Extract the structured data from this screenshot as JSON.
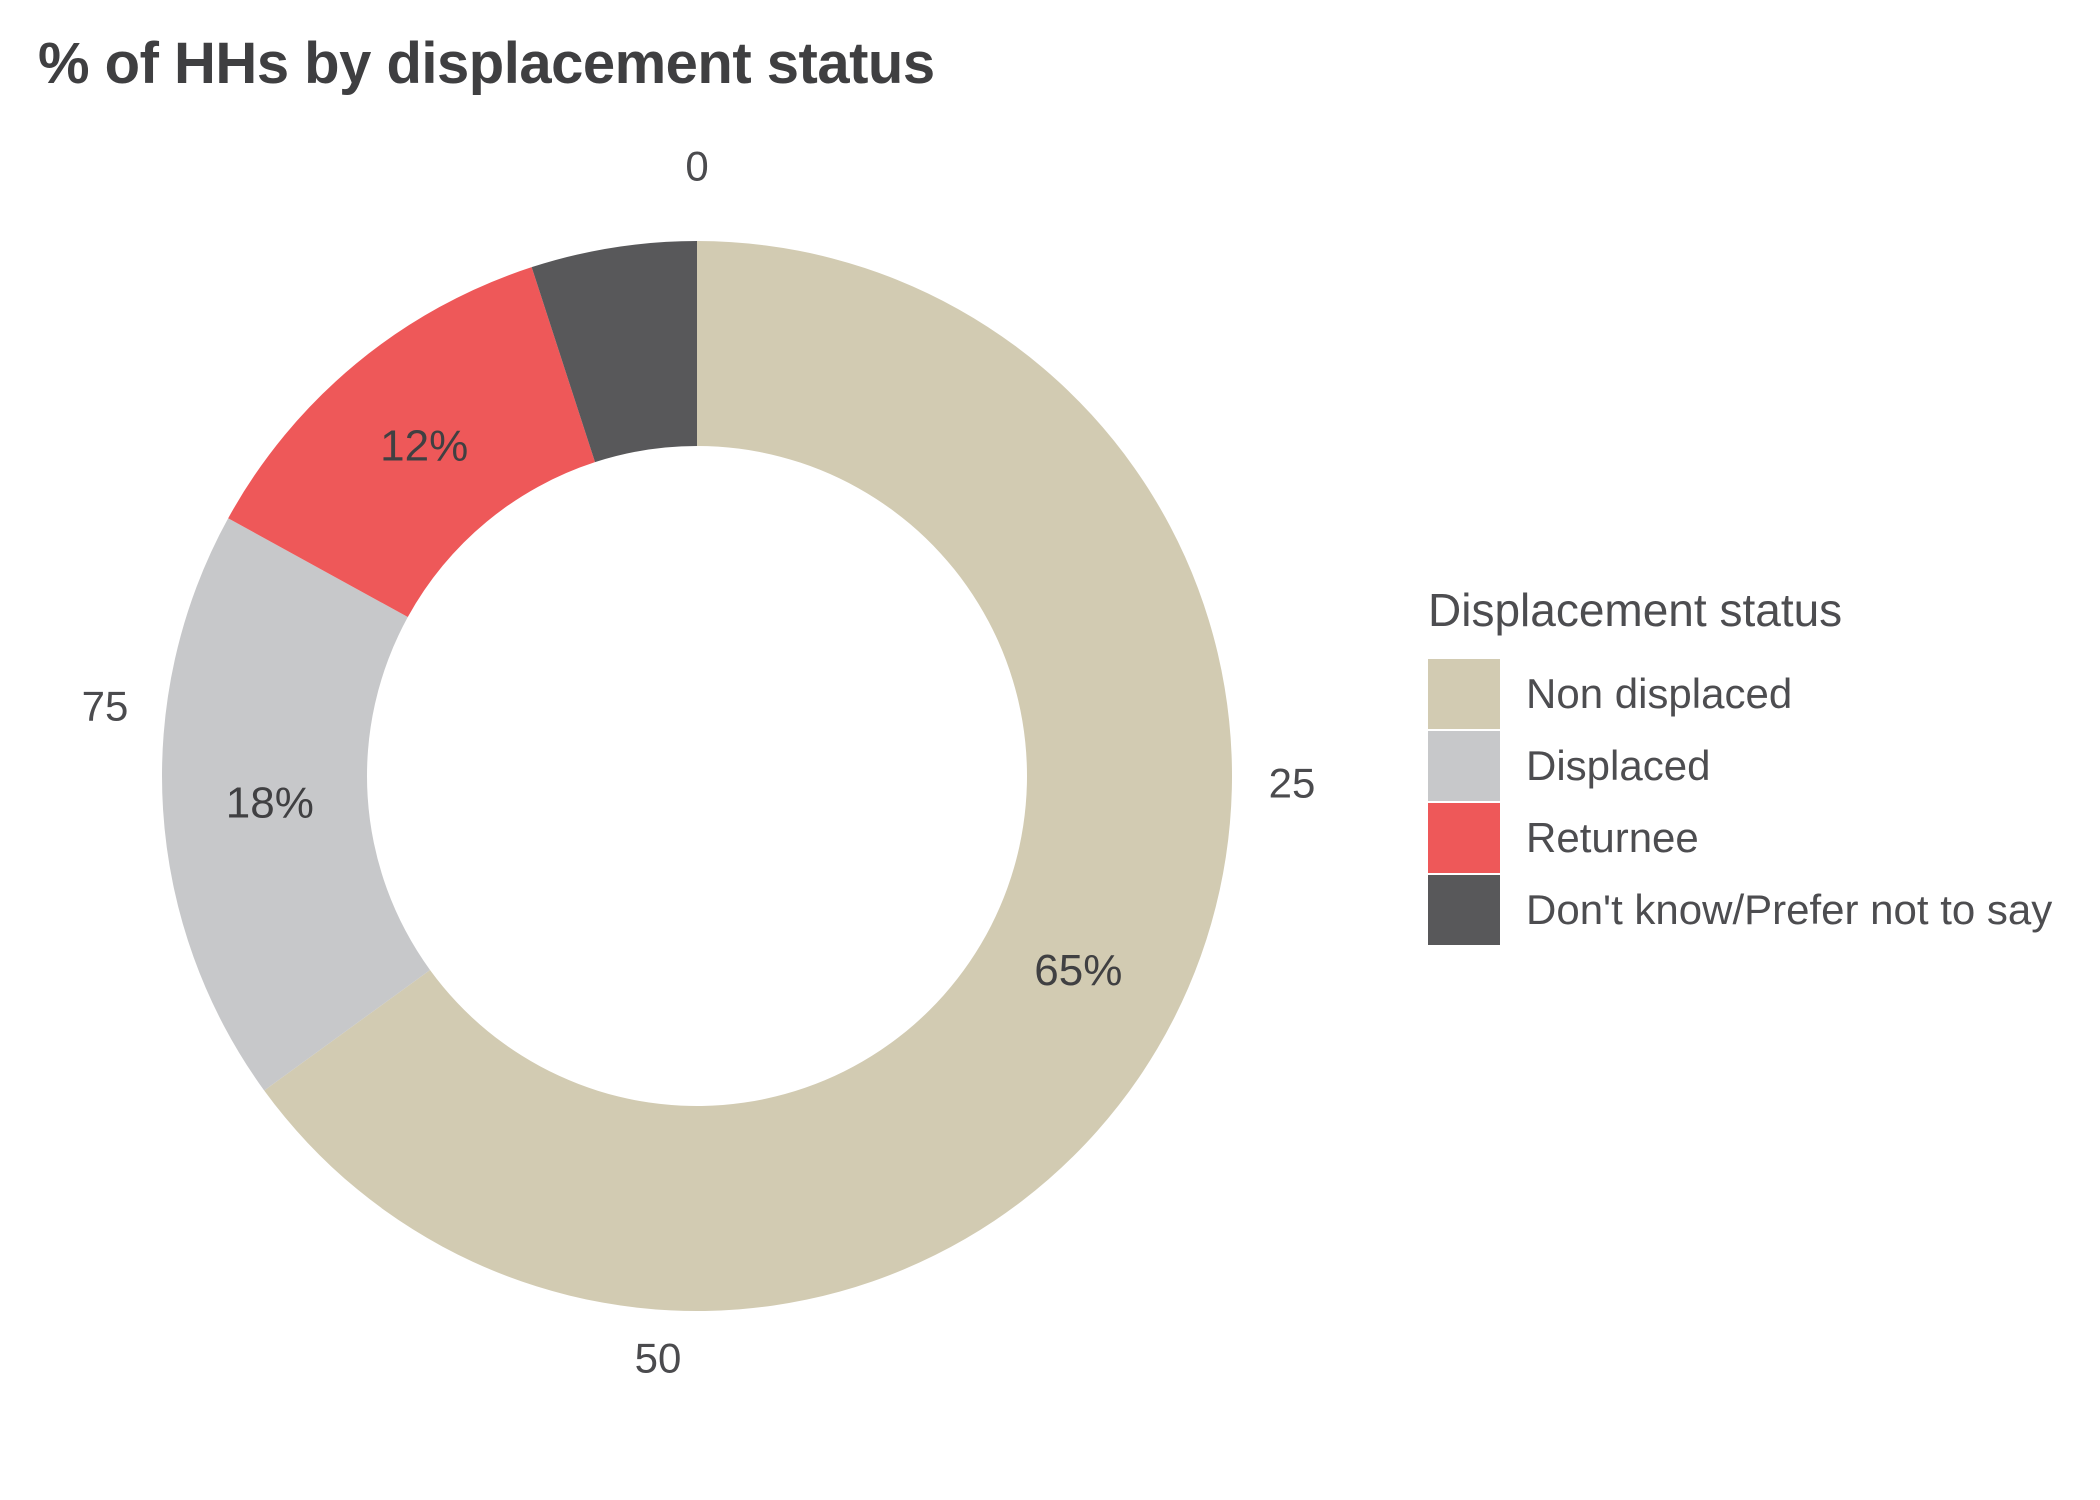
{
  "title": "% of HHs by displacement status",
  "colors": {
    "background": "#ffffff",
    "title_text": "#3f3f41",
    "label_text": "#404042",
    "tick_text": "#4b4b4e",
    "legend_text": "#4d4d50"
  },
  "chart_data": {
    "type": "pie",
    "subtype": "donut",
    "title": "% of HHs by displacement status",
    "categories": [
      "Non displaced",
      "Displaced",
      "Returnee",
      "Don't know/Prefer not to say"
    ],
    "values": [
      65,
      18,
      12,
      5
    ],
    "unit": "%",
    "slice_labels": [
      "65%",
      "18%",
      "12%",
      ""
    ],
    "colors": [
      "#d2cbb2",
      "#c7c8ca",
      "#ee5859",
      "#58585a"
    ],
    "start_angle_deg": 0,
    "direction": "clockwise",
    "angular_axis_ticks": [
      "0",
      "25",
      "50",
      "75"
    ],
    "grid": false,
    "legend": {
      "title": "Displacement status",
      "position": "right",
      "entries": [
        "Non displaced",
        "Displaced",
        "Returnee",
        "Don't know/Prefer not to say"
      ]
    }
  }
}
